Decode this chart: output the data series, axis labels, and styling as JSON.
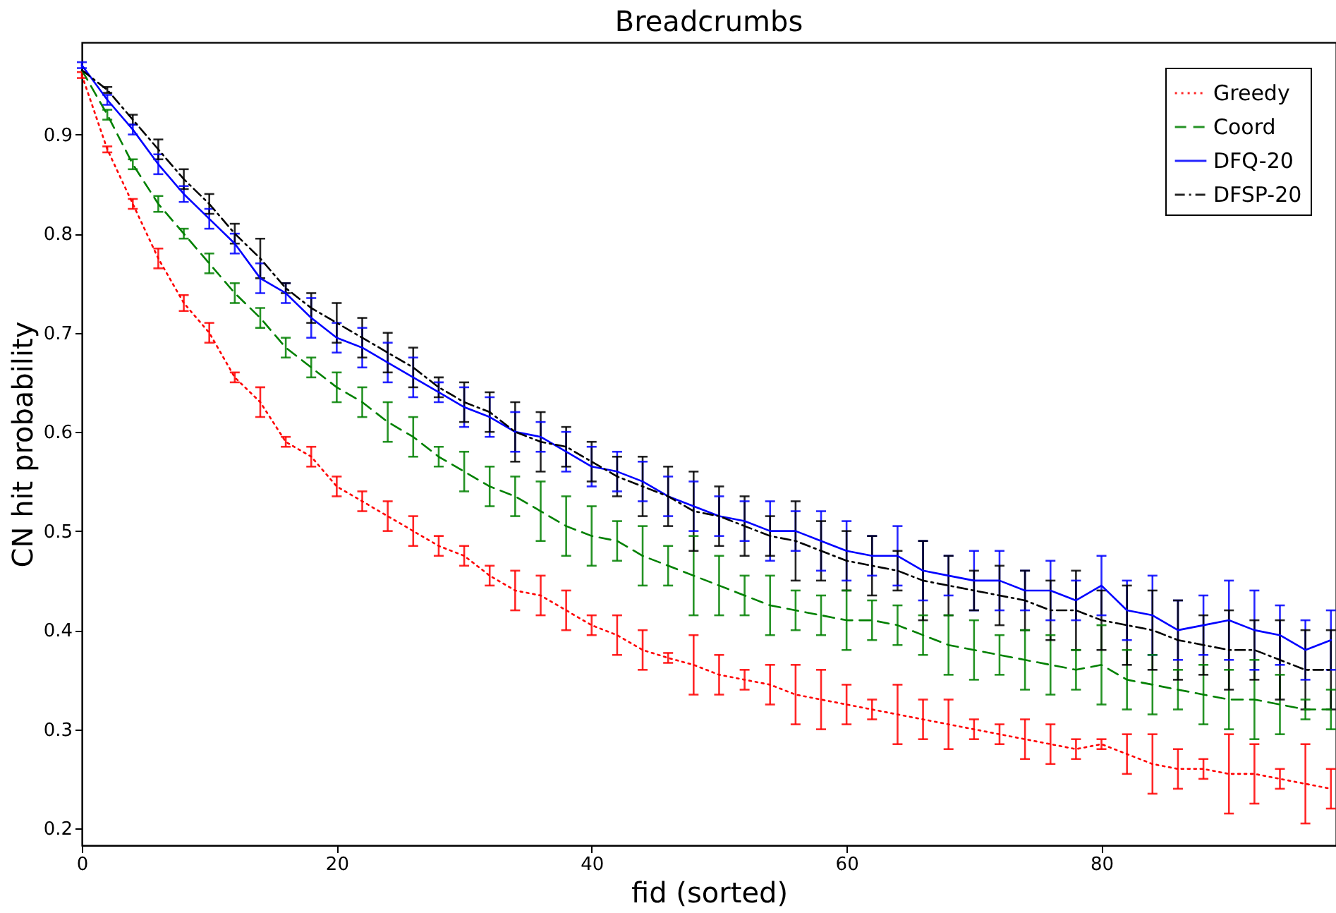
{
  "chart_data": {
    "type": "line",
    "title": "Breadcrumbs",
    "xlabel": "fid (sorted)",
    "ylabel": "CN hit probability",
    "x": [
      0,
      2,
      4,
      6,
      8,
      10,
      12,
      14,
      16,
      18,
      20,
      22,
      24,
      26,
      28,
      30,
      32,
      34,
      36,
      38,
      40,
      42,
      44,
      46,
      48,
      50,
      52,
      54,
      56,
      58,
      60,
      62,
      64,
      66,
      68,
      70,
      72,
      74,
      76,
      78,
      80,
      82,
      84,
      86,
      88,
      90,
      92,
      94,
      96,
      98
    ],
    "xlim": [
      0,
      98.4
    ],
    "xticks": [
      0,
      20,
      40,
      60,
      80
    ],
    "ylim": [
      0.183,
      0.993
    ],
    "yticks": [
      0.2,
      0.3,
      0.4,
      0.5,
      0.6,
      0.7,
      0.8,
      0.9
    ],
    "grid": false,
    "legend": "top right",
    "marker": "none",
    "series": [
      {
        "name": "Greedy",
        "color": "#ff0000",
        "line_style": "dotted",
        "values": [
          0.96,
          0.885,
          0.83,
          0.775,
          0.73,
          0.7,
          0.655,
          0.63,
          0.59,
          0.575,
          0.545,
          0.53,
          0.515,
          0.5,
          0.485,
          0.475,
          0.455,
          0.44,
          0.435,
          0.42,
          0.405,
          0.395,
          0.38,
          0.372,
          0.365,
          0.355,
          0.35,
          0.345,
          0.335,
          0.33,
          0.325,
          0.32,
          0.315,
          0.31,
          0.305,
          0.3,
          0.295,
          0.29,
          0.285,
          0.28,
          0.285,
          0.275,
          0.265,
          0.26,
          0.26,
          0.255,
          0.255,
          0.25,
          0.245,
          0.24
        ],
        "errors": [
          0.003,
          0.003,
          0.005,
          0.01,
          0.008,
          0.01,
          0.005,
          0.015,
          0.005,
          0.01,
          0.01,
          0.01,
          0.015,
          0.015,
          0.01,
          0.01,
          0.01,
          0.02,
          0.02,
          0.02,
          0.01,
          0.02,
          0.02,
          0.005,
          0.03,
          0.02,
          0.01,
          0.02,
          0.03,
          0.03,
          0.02,
          0.01,
          0.03,
          0.02,
          0.025,
          0.01,
          0.01,
          0.02,
          0.02,
          0.01,
          0.005,
          0.02,
          0.03,
          0.02,
          0.01,
          0.04,
          0.03,
          0.01,
          0.04,
          0.02
        ]
      },
      {
        "name": "Coord",
        "color": "#008000",
        "line_style": "dashed",
        "values": [
          0.965,
          0.92,
          0.87,
          0.83,
          0.8,
          0.77,
          0.74,
          0.715,
          0.685,
          0.665,
          0.645,
          0.63,
          0.61,
          0.595,
          0.575,
          0.56,
          0.545,
          0.535,
          0.52,
          0.505,
          0.495,
          0.49,
          0.475,
          0.465,
          0.455,
          0.445,
          0.435,
          0.425,
          0.42,
          0.415,
          0.41,
          0.41,
          0.405,
          0.395,
          0.385,
          0.38,
          0.375,
          0.37,
          0.365,
          0.36,
          0.365,
          0.35,
          0.345,
          0.34,
          0.335,
          0.33,
          0.33,
          0.325,
          0.32,
          0.32
        ],
        "errors": [
          null,
          0.005,
          0.005,
          0.008,
          0.005,
          0.01,
          0.01,
          0.01,
          0.01,
          0.01,
          0.015,
          0.015,
          0.02,
          0.02,
          0.01,
          0.02,
          0.02,
          0.02,
          0.03,
          0.03,
          0.03,
          0.02,
          0.03,
          0.02,
          0.04,
          0.03,
          0.02,
          0.03,
          0.02,
          0.02,
          0.03,
          0.02,
          0.02,
          0.02,
          0.03,
          0.03,
          0.02,
          0.03,
          0.03,
          0.02,
          0.04,
          0.03,
          0.03,
          0.02,
          0.03,
          0.03,
          0.04,
          0.03,
          0.01,
          0.02
        ]
      },
      {
        "name": "DFQ-20",
        "color": "#0000ff",
        "line_style": "solid",
        "values": [
          0.97,
          0.935,
          0.905,
          0.87,
          0.84,
          0.815,
          0.79,
          0.755,
          0.74,
          0.715,
          0.695,
          0.685,
          0.67,
          0.655,
          0.64,
          0.625,
          0.615,
          0.6,
          0.595,
          0.58,
          0.565,
          0.56,
          0.55,
          0.535,
          0.525,
          0.515,
          0.51,
          0.5,
          0.5,
          0.49,
          0.48,
          0.475,
          0.475,
          0.46,
          0.455,
          0.45,
          0.45,
          0.44,
          0.44,
          0.43,
          0.445,
          0.42,
          0.415,
          0.4,
          0.405,
          0.41,
          0.4,
          0.395,
          0.38,
          0.39
        ],
        "errors": [
          0.003,
          0.005,
          0.005,
          0.01,
          0.008,
          0.01,
          0.01,
          0.015,
          0.01,
          0.02,
          0.015,
          0.02,
          0.02,
          0.02,
          0.01,
          0.02,
          0.02,
          0.02,
          0.015,
          0.02,
          0.02,
          0.02,
          0.02,
          0.02,
          0.025,
          0.02,
          0.02,
          0.03,
          0.02,
          0.03,
          0.03,
          0.02,
          0.03,
          0.03,
          0.02,
          0.03,
          0.03,
          0.02,
          0.03,
          0.02,
          0.03,
          0.03,
          0.04,
          0.03,
          0.03,
          0.04,
          0.04,
          0.03,
          0.03,
          0.03
        ]
      },
      {
        "name": "DFSP-20",
        "color": "#000000",
        "line_style": "dashdot",
        "values": [
          0.965,
          0.945,
          0.915,
          0.885,
          0.855,
          0.83,
          0.8,
          0.775,
          0.745,
          0.725,
          0.71,
          0.695,
          0.68,
          0.665,
          0.645,
          0.63,
          0.62,
          0.6,
          0.59,
          0.585,
          0.57,
          0.555,
          0.545,
          0.535,
          0.52,
          0.515,
          0.505,
          0.495,
          0.49,
          0.48,
          0.47,
          0.465,
          0.46,
          0.45,
          0.445,
          0.44,
          0.435,
          0.43,
          0.42,
          0.42,
          0.41,
          0.405,
          0.4,
          0.39,
          0.385,
          0.38,
          0.38,
          0.37,
          0.36,
          0.36
        ],
        "errors": [
          null,
          0.003,
          0.005,
          0.01,
          0.01,
          0.01,
          0.01,
          0.02,
          0.005,
          0.015,
          0.02,
          0.02,
          0.02,
          0.02,
          0.01,
          0.02,
          0.02,
          0.03,
          0.03,
          0.02,
          0.02,
          0.02,
          0.03,
          0.03,
          0.04,
          0.03,
          0.03,
          0.02,
          0.04,
          0.03,
          0.03,
          0.03,
          0.02,
          0.04,
          0.03,
          0.02,
          0.03,
          0.03,
          0.03,
          0.04,
          0.03,
          0.04,
          0.04,
          0.04,
          0.03,
          0.04,
          0.03,
          0.04,
          0.04,
          0.04
        ]
      }
    ]
  }
}
